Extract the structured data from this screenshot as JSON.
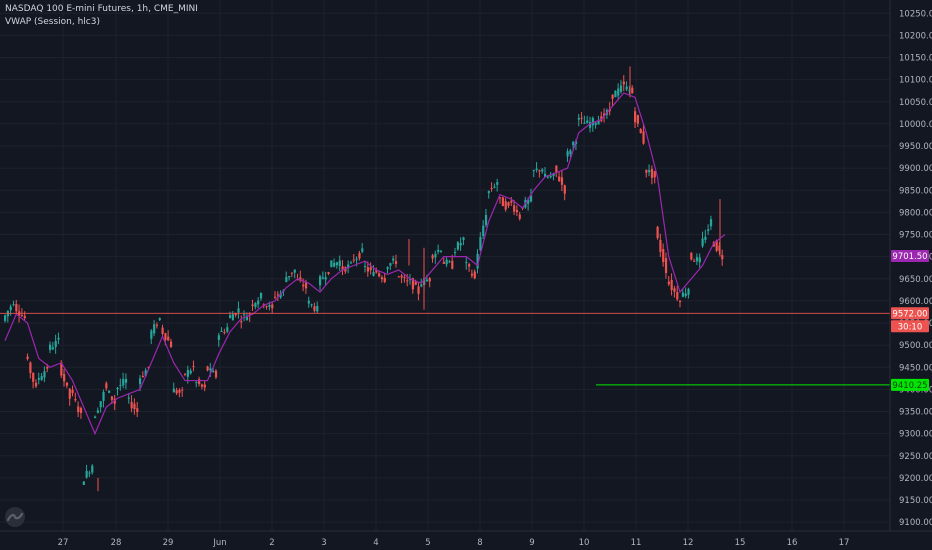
{
  "header": {
    "symbol_line": "NASDAQ 100 E-mini Futures, 1h, CME_MINI",
    "indicator_line": "VWAP (Session, hlc3)"
  },
  "colors": {
    "background": "#131722",
    "up_candle": "#26a69a",
    "down_candle": "#ef5350",
    "vwap": "#9c27b0",
    "current_price_line": "#ef5350",
    "target_line": "#00e600",
    "axis_text": "#b2b5be"
  },
  "icons": {
    "logo": "tradingview-logo-icon"
  },
  "chart_data": {
    "type": "candlestick",
    "title": "NASDAQ 100 E-mini Futures, 1h, CME_MINI",
    "indicator": "VWAP (Session, hlc3)",
    "ylim": [
      9080,
      10280
    ],
    "y_ticks": [
      "10250.00",
      "10200.00",
      "10150.00",
      "10100.00",
      "10050.00",
      "10000.00",
      "9950.00",
      "9900.00",
      "9850.00",
      "9800.00",
      "9750.00",
      "9700.00",
      "9650.00",
      "9600.00",
      "9550.00",
      "9500.00",
      "9450.00",
      "9400.00",
      "9350.00",
      "9300.00",
      "9250.00",
      "9200.00",
      "9150.00",
      "9100.00"
    ],
    "x_labels": [
      "27",
      "28",
      "29",
      "Jun",
      "2",
      "3",
      "4",
      "5",
      "8",
      "9",
      "10",
      "11",
      "12",
      "15",
      "16",
      "17"
    ],
    "price_path": [
      [
        9520,
        9555
      ],
      [
        9600,
        9590
      ],
      [
        9560,
        9480
      ],
      [
        9400,
        9420
      ],
      [
        9450,
        9490
      ],
      [
        9510,
        9460
      ],
      [
        9380,
        9400
      ],
      [
        9340,
        9190
      ],
      [
        9230,
        9330
      ],
      [
        9390,
        9410
      ],
      [
        9370,
        9400
      ],
      [
        9420,
        9380
      ],
      [
        9350,
        9420
      ],
      [
        9450,
        9520
      ],
      [
        9560,
        9540
      ],
      [
        9500,
        9400
      ],
      [
        9390,
        9430
      ],
      [
        9450,
        9420
      ],
      [
        9400,
        9450
      ],
      [
        9430,
        9520
      ],
      [
        9540,
        9560
      ],
      [
        9580,
        9560
      ],
      [
        9570,
        9590
      ],
      [
        9610,
        9600
      ],
      [
        9580,
        9610
      ],
      [
        9620,
        9650
      ],
      [
        9670,
        9650
      ],
      [
        9630,
        9600
      ],
      [
        9580,
        9640
      ],
      [
        9670,
        9680
      ],
      [
        9690,
        9670
      ],
      [
        9680,
        9690
      ],
      [
        9710,
        9680
      ],
      [
        9660,
        9670
      ],
      [
        9650,
        9680
      ],
      [
        9690,
        9660
      ],
      [
        9640,
        9650
      ],
      [
        9620,
        9640
      ],
      [
        9650,
        9700
      ],
      [
        9720,
        9690
      ],
      [
        9680,
        9710
      ],
      [
        9740,
        9690
      ],
      [
        9650,
        9680
      ],
      [
        9800,
        9840
      ],
      [
        9870,
        9830
      ],
      [
        9810,
        9830
      ],
      [
        9790,
        9810
      ],
      [
        9830,
        9890
      ],
      [
        9900,
        9880
      ],
      [
        9880,
        9900
      ],
      [
        9850,
        9920
      ],
      [
        9970,
        10010
      ],
      [
        10000,
        10000
      ],
      [
        10010,
        10010
      ],
      [
        10030,
        10060
      ],
      [
        10080,
        10090
      ],
      [
        10070,
        10030
      ],
      [
        9960,
        9900
      ],
      [
        9880,
        9760
      ],
      [
        9670,
        9650
      ],
      [
        9610,
        9600
      ],
      [
        9630,
        9700
      ],
      [
        9690,
        9720
      ],
      [
        9780,
        9740
      ],
      [
        9700,
        9580
      ]
    ],
    "vwap_path": [
      [
        9510
      ],
      [
        9570
      ],
      [
        9550
      ],
      [
        9470
      ],
      [
        9450
      ],
      [
        9460
      ],
      [
        9420
      ],
      [
        9360
      ],
      [
        9300
      ],
      [
        9360
      ],
      [
        9380
      ],
      [
        9390
      ],
      [
        9400
      ],
      [
        9460
      ],
      [
        9520
      ],
      [
        9460
      ],
      [
        9420
      ],
      [
        9420
      ],
      [
        9420
      ],
      [
        9480
      ],
      [
        9530
      ],
      [
        9560
      ],
      [
        9570
      ],
      [
        9590
      ],
      [
        9600
      ],
      [
        9630
      ],
      [
        9650
      ],
      [
        9640
      ],
      [
        9620
      ],
      [
        9650
      ],
      [
        9670
      ],
      [
        9680
      ],
      [
        9690
      ],
      [
        9670
      ],
      [
        9660
      ],
      [
        9670
      ],
      [
        9650
      ],
      [
        9640
      ],
      [
        9670
      ],
      [
        9700
      ],
      [
        9700
      ],
      [
        9700
      ],
      [
        9680
      ],
      [
        9780
      ],
      [
        9840
      ],
      [
        9830
      ],
      [
        9810
      ],
      [
        9850
      ],
      [
        9880
      ],
      [
        9890
      ],
      [
        9900
      ],
      [
        9980
      ],
      [
        10000
      ],
      [
        10010
      ],
      [
        10040
      ],
      [
        10070
      ],
      [
        10060
      ],
      [
        9980
      ],
      [
        9880
      ],
      [
        9700
      ],
      [
        9620
      ],
      [
        9650
      ],
      [
        9680
      ],
      [
        9730
      ],
      [
        9750
      ]
    ],
    "last_price_label": "9572.00",
    "countdown_label": "30:10",
    "last_price_value": 9572,
    "vwap_label": "9701.50",
    "vwap_value": 9701.5,
    "target_label": "9410.25",
    "target_value": 9410.25
  }
}
